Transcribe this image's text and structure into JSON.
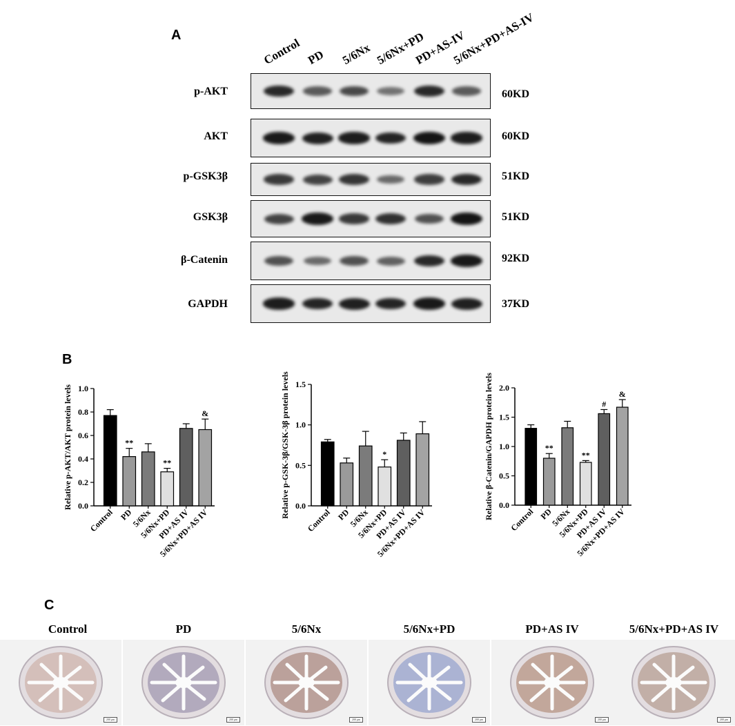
{
  "panels": {
    "a": "A",
    "b": "B",
    "c": "C"
  },
  "lanes": [
    "Control",
    "PD",
    "5/6Nx",
    "5/6Nx+PD",
    "PD+AS-IV",
    "5/6Nx+PD+AS-IV"
  ],
  "blots": [
    {
      "protein": "p-AKT",
      "size": "60KD",
      "intensity": [
        0.85,
        0.55,
        0.65,
        0.4,
        0.85,
        0.55
      ]
    },
    {
      "protein": "AKT",
      "size": "60KD",
      "intensity": [
        0.95,
        0.9,
        0.92,
        0.88,
        0.98,
        0.92
      ]
    },
    {
      "protein": "p-GSK3β",
      "size": "51KD",
      "intensity": [
        0.75,
        0.7,
        0.78,
        0.45,
        0.72,
        0.85
      ]
    },
    {
      "protein": "GSK3β",
      "size": "51KD",
      "intensity": [
        0.7,
        0.95,
        0.75,
        0.8,
        0.6,
        0.98
      ]
    },
    {
      "protein": "β-Catenin",
      "size": "92KD",
      "intensity": [
        0.6,
        0.45,
        0.6,
        0.5,
        0.85,
        0.95
      ]
    },
    {
      "protein": "GAPDH",
      "size": "37KD",
      "intensity": [
        0.92,
        0.88,
        0.9,
        0.88,
        0.95,
        0.9
      ]
    }
  ],
  "chart_data": [
    {
      "type": "bar",
      "categories": [
        "Control",
        "PD",
        "5/6Nx",
        "5/6Nx+PD",
        "PD+AS IV",
        "5/6Nx+PD+AS IV"
      ],
      "values": [
        0.77,
        0.42,
        0.46,
        0.29,
        0.66,
        0.65
      ],
      "errors": [
        0.05,
        0.07,
        0.07,
        0.03,
        0.04,
        0.09
      ],
      "annotations": [
        "",
        "**",
        "",
        "**",
        "",
        "&"
      ],
      "ylabel": "Relative p-AKT/AKT protein levels",
      "ylim": [
        0,
        1.0
      ],
      "yticks": [
        "0.0",
        "0.2",
        "0.4",
        "0.6",
        "0.8",
        "1.0"
      ],
      "colors": [
        "#000000",
        "#9a9a9a",
        "#7b7b7b",
        "#e0e0e0",
        "#5f5f5f",
        "#a3a3a3"
      ]
    },
    {
      "type": "bar",
      "categories": [
        "Control",
        "PD",
        "5/6Nx",
        "5/6Nx+PD",
        "PD+AS IV",
        "5/6Nx+PD+AS IV"
      ],
      "values": [
        0.79,
        0.53,
        0.74,
        0.48,
        0.81,
        0.89
      ],
      "errors": [
        0.03,
        0.06,
        0.18,
        0.09,
        0.09,
        0.15
      ],
      "annotations": [
        "",
        "",
        "",
        "*",
        "",
        ""
      ],
      "ylabel": "Relative p-GSK-3β/GSK-3β protein levels",
      "ylim": [
        0,
        1.5
      ],
      "yticks": [
        "0.0",
        "0.5",
        "1.0",
        "1.5"
      ],
      "colors": [
        "#000000",
        "#9a9a9a",
        "#7b7b7b",
        "#e0e0e0",
        "#5f5f5f",
        "#a3a3a3"
      ]
    },
    {
      "type": "bar",
      "categories": [
        "Control",
        "PD",
        "5/6Nx",
        "5/6Nx+PD",
        "PD+AS IV",
        "5/6Nx+PD+AS IV"
      ],
      "values": [
        1.31,
        0.8,
        1.32,
        0.73,
        1.56,
        1.67
      ],
      "errors": [
        0.06,
        0.08,
        0.11,
        0.03,
        0.07,
        0.13
      ],
      "annotations": [
        "",
        "**",
        "",
        "**",
        "#",
        "&"
      ],
      "ylabel": "Relative β-Catenin/GAPDH protein levels",
      "ylim": [
        0,
        2.0
      ],
      "yticks": [
        "0.0",
        "0.5",
        "1.0",
        "1.5",
        "2.0"
      ],
      "colors": [
        "#000000",
        "#9a9a9a",
        "#7b7b7b",
        "#e0e0e0",
        "#5f5f5f",
        "#a3a3a3"
      ]
    }
  ],
  "histology": {
    "labels": [
      "Control",
      "PD",
      "5/6Nx",
      "5/6Nx+PD",
      "PD+AS IV",
      "5/6Nx+PD+AS IV"
    ],
    "stain_colors": [
      "#c9a59a",
      "#8a7fa0",
      "#9a6f62",
      "#7d8fc9",
      "#a87a62",
      "#a88879"
    ],
    "scale": "200 μm"
  }
}
